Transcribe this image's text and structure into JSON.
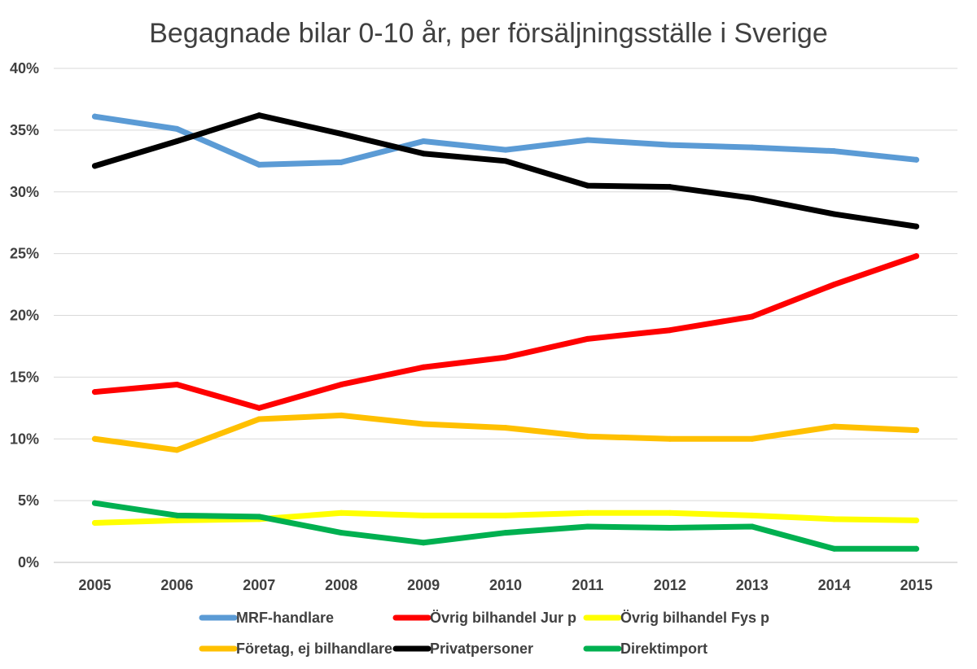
{
  "chart_data": {
    "type": "line",
    "title": "Begagnade bilar 0-10 år, per försäljningsställe i Sverige",
    "xlabel": "",
    "ylabel": "",
    "ylim": [
      0,
      40
    ],
    "y_ticks": [
      0,
      5,
      10,
      15,
      20,
      25,
      30,
      35,
      40
    ],
    "y_tick_labels": [
      "0%",
      "5%",
      "10%",
      "15%",
      "20%",
      "25%",
      "30%",
      "35%",
      "40%"
    ],
    "categories": [
      "2005",
      "2006",
      "2007",
      "2008",
      "2009",
      "2010",
      "2011",
      "2012",
      "2013",
      "2014",
      "2015"
    ],
    "grid": "horizontal",
    "legend_position": "bottom",
    "series": [
      {
        "name": "MRF-handlare",
        "color": "#5b9bd5",
        "values": [
          36.1,
          35.1,
          32.2,
          32.4,
          34.1,
          33.4,
          34.2,
          33.8,
          33.6,
          33.3,
          32.6
        ]
      },
      {
        "name": "Övrig bilhandel Jur p",
        "color": "#ff0000",
        "values": [
          13.8,
          14.4,
          12.5,
          14.4,
          15.8,
          16.6,
          18.1,
          18.8,
          19.9,
          22.5,
          24.8
        ]
      },
      {
        "name": "Övrig bilhandel Fys p",
        "color": "#ffff00",
        "values": [
          3.2,
          3.4,
          3.5,
          4.0,
          3.8,
          3.8,
          4.0,
          4.0,
          3.8,
          3.5,
          3.4
        ]
      },
      {
        "name": "Företag, ej bilhandlare",
        "color": "#ffc000",
        "values": [
          10.0,
          9.1,
          11.6,
          11.9,
          11.2,
          10.9,
          10.2,
          10.0,
          10.0,
          11.0,
          10.7
        ]
      },
      {
        "name": "Privatpersoner",
        "color": "#000000",
        "values": [
          32.1,
          34.1,
          36.2,
          34.7,
          33.1,
          32.5,
          30.5,
          30.4,
          29.5,
          28.2,
          27.2
        ]
      },
      {
        "name": "Direktimport",
        "color": "#00b050",
        "values": [
          4.8,
          3.8,
          3.7,
          2.4,
          1.6,
          2.4,
          2.9,
          2.8,
          2.9,
          1.1,
          1.1
        ]
      }
    ]
  }
}
